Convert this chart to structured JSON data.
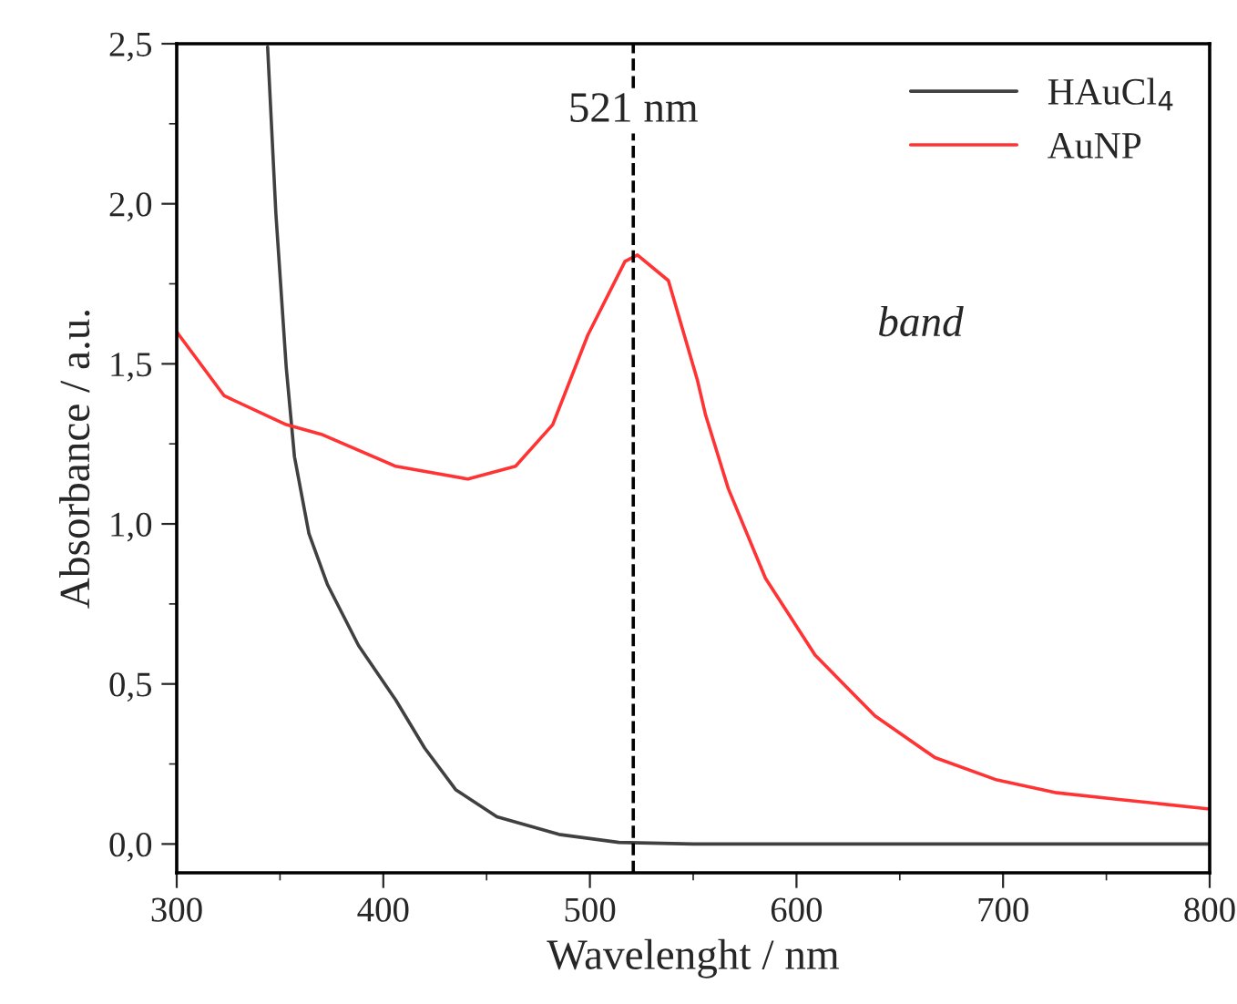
{
  "chart_data": {
    "type": "line",
    "xlabel": "Wavelenght / nm",
    "ylabel": "Absorbance / a.u.",
    "xlim": [
      300,
      800
    ],
    "xticks": [
      300,
      400,
      500,
      600,
      700,
      800
    ],
    "ylim": [
      -0.09,
      2.5
    ],
    "yticks": [
      {
        "value": 0,
        "label": "0,0"
      },
      {
        "value": 0.5,
        "label": "0,5"
      },
      {
        "value": 1.0,
        "label": "1,0"
      },
      {
        "value": 1.5,
        "label": "1,5"
      },
      {
        "value": 2.0,
        "label": "2,0"
      },
      {
        "value": 2.5,
        "label": "2,5"
      }
    ],
    "series": [
      {
        "name": "HAuCl$_{4}$",
        "color": "#404040",
        "x": [
          344,
          348,
          353,
          357,
          364,
          373,
          388,
          406,
          420,
          435,
          455,
          485,
          514,
          550,
          600,
          700,
          800
        ],
        "values": [
          2.49,
          1.97,
          1.49,
          1.21,
          0.97,
          0.81,
          0.62,
          0.45,
          0.3,
          0.17,
          0.085,
          0.03,
          0.005,
          0,
          0,
          0,
          0
        ]
      },
      {
        "name": "AuNP",
        "color": "#ff3333",
        "x": [
          300,
          323,
          353,
          370,
          406,
          441,
          464,
          482,
          499,
          517,
          523,
          538,
          552,
          556,
          567,
          585,
          609,
          638,
          667,
          697,
          726,
          755,
          799
        ],
        "values": [
          1.6,
          1.4,
          1.31,
          1.28,
          1.18,
          1.14,
          1.18,
          1.31,
          1.59,
          1.82,
          1.84,
          1.76,
          1.45,
          1.34,
          1.11,
          0.83,
          0.59,
          0.4,
          0.27,
          0.2,
          0.16,
          0.14,
          0.11
        ]
      }
    ],
    "ref_lines": [
      {
        "axis": "x",
        "value": 521,
        "label": "521 nm",
        "color": "#000000",
        "line_style": "dashed"
      }
    ],
    "annotations": [
      "band"
    ],
    "legend": "top right",
    "grid": false,
    "marker": "none",
    "line_style": "solid"
  }
}
